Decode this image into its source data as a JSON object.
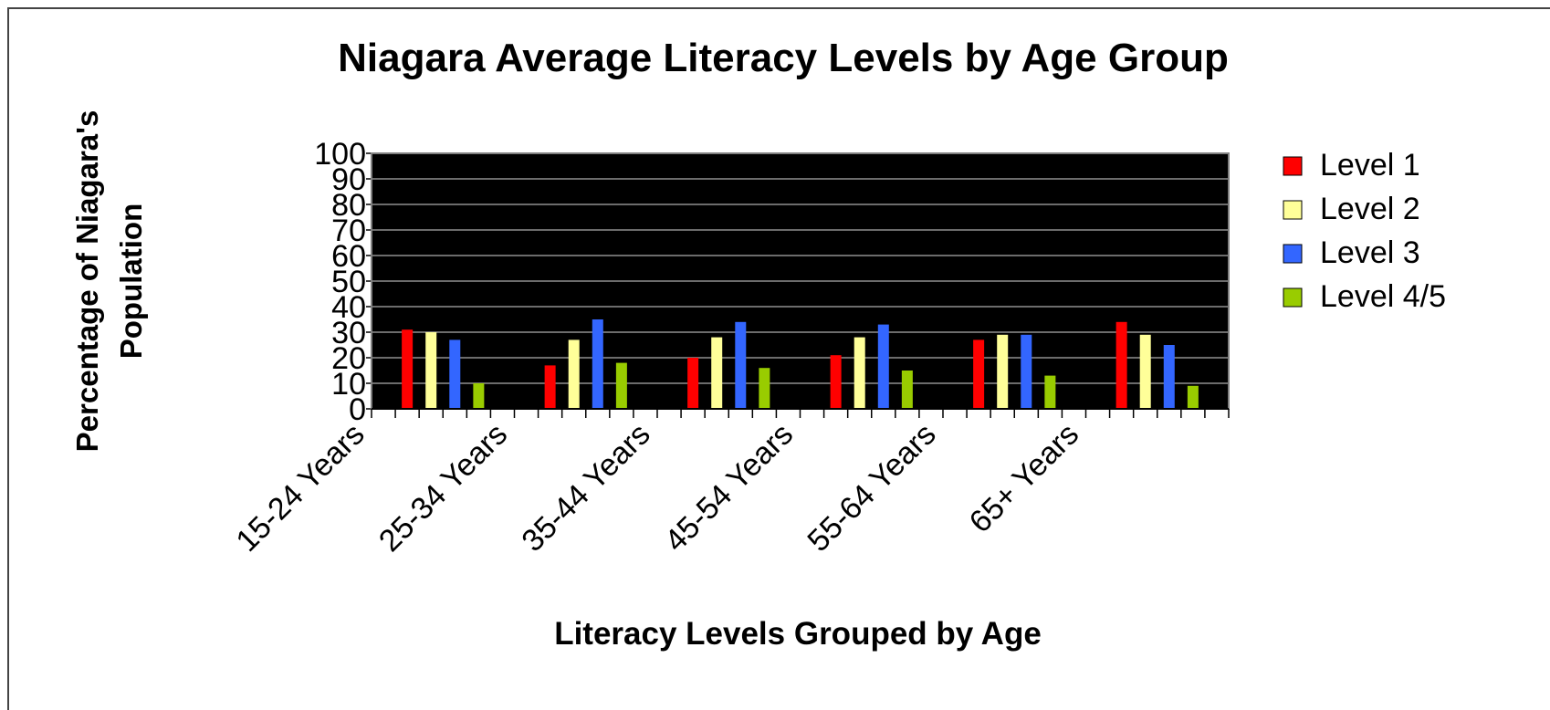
{
  "chart_data": {
    "type": "bar",
    "title": "Niagara Average Literacy Levels by Age Group",
    "xlabel": "Literacy Levels Grouped by Age",
    "ylabel_lines": [
      "Percentage of Niagara's",
      "Population"
    ],
    "categories": [
      "15-24 Years",
      "25-34 Years",
      "35-44 Years",
      "45-54 Years",
      "55-64 Years",
      "65+ Years"
    ],
    "yticks": [
      "0",
      "10",
      "20",
      "30",
      "40",
      "50",
      "60",
      "70",
      "80",
      "90",
      "100"
    ],
    "ylim": [
      0,
      100
    ],
    "grid": true,
    "legend_position": "right",
    "plot_background": "#000000",
    "series": [
      {
        "name": "Level 1",
        "color": "#ff0000",
        "values": [
          31,
          17,
          20,
          21,
          27,
          34
        ]
      },
      {
        "name": "Level 2",
        "color": "#ffff99",
        "values": [
          30,
          27,
          28,
          28,
          29,
          29
        ]
      },
      {
        "name": "Level 3",
        "color": "#3366ff",
        "values": [
          27,
          35,
          34,
          33,
          29,
          25
        ]
      },
      {
        "name": "Level 4/5",
        "color": "#99cc00",
        "values": [
          10,
          18,
          16,
          15,
          13,
          9
        ]
      }
    ]
  }
}
